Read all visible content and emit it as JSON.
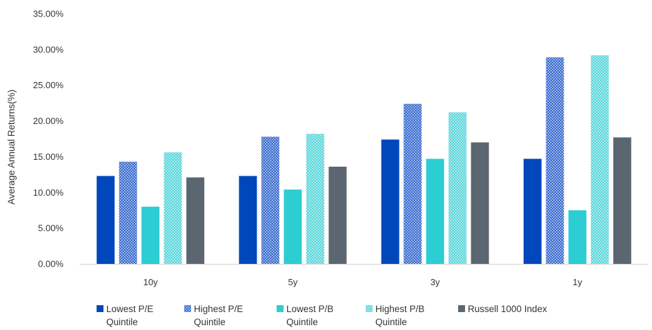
{
  "chart_data": {
    "type": "bar",
    "title": "",
    "xlabel": "",
    "ylabel": "Average Annual Returns(%)",
    "ylim": [
      0,
      35
    ],
    "yticks": [
      "0.00%",
      "5.00%",
      "10.00%",
      "15.00%",
      "20.00%",
      "25.00%",
      "30.00%",
      "35.00%"
    ],
    "grid": false,
    "legend_position": "bottom",
    "categories": [
      "10y",
      "5y",
      "3y",
      "1y"
    ],
    "series": [
      {
        "name": "Lowest P/E Quintile",
        "legend_lines": [
          "Lowest P/E",
          "Quintile"
        ],
        "color": "#0047BB",
        "pattern": "solid",
        "values": [
          12.3,
          12.3,
          17.4,
          14.7
        ]
      },
      {
        "name": "Highest P/E Quintile",
        "legend_lines": [
          "Highest P/E",
          "Quintile"
        ],
        "color": "#3F6FD0",
        "pattern": "dotted",
        "values": [
          14.3,
          17.8,
          22.4,
          28.9
        ]
      },
      {
        "name": "Lowest P/B Quintile",
        "legend_lines": [
          "Lowest P/B",
          "Quintile"
        ],
        "color": "#2CCDD3",
        "pattern": "solid",
        "values": [
          8.0,
          10.4,
          14.7,
          7.5
        ]
      },
      {
        "name": "Highest P/B Quintile",
        "legend_lines": [
          "Highest P/B",
          "Quintile"
        ],
        "color": "#5ED7DB",
        "pattern": "dotted",
        "values": [
          15.6,
          18.2,
          21.2,
          29.2
        ]
      },
      {
        "name": "Russell 1000 Index",
        "legend_lines": [
          "Russell 1000 Index"
        ],
        "color": "#5C6670",
        "pattern": "solid",
        "values": [
          12.1,
          13.6,
          17.0,
          17.7
        ]
      }
    ]
  }
}
